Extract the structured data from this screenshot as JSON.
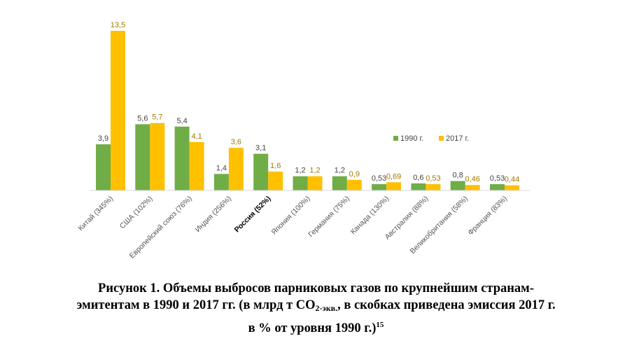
{
  "chart_data": {
    "type": "bar",
    "categories": [
      "Китай (345%)",
      "США (102%)",
      "Европейский союз (76%)",
      "Индия (256%)",
      "Россия (52%)",
      "Япония (100%)",
      "Германия (75%)",
      "Канада (130%)",
      "Австралия (88%)",
      "Великобритания (58%)",
      "Франция (83%)"
    ],
    "highlight_category": "Россия (52%)",
    "series": [
      {
        "name": "1990 г.",
        "color": "#70ad47",
        "values": [
          3.9,
          5.6,
          5.4,
          1.4,
          3.1,
          1.2,
          1.2,
          0.53,
          0.6,
          0.8,
          0.53
        ],
        "labels": [
          "3,9",
          "5,6",
          "5,4",
          "1,4",
          "3,1",
          "1,2",
          "1,2",
          "0,53",
          "0,6",
          "0,8",
          "0,53"
        ]
      },
      {
        "name": "2017 г.",
        "color": "#ffc000",
        "values": [
          13.5,
          5.7,
          4.1,
          3.6,
          1.6,
          1.2,
          0.9,
          0.69,
          0.53,
          0.46,
          0.44
        ],
        "labels": [
          "13,5",
          "5,7",
          "4,1",
          "3,6",
          "1,6",
          "1,2",
          "0,9",
          "0,69",
          "0,53",
          "0,46",
          "0,44"
        ]
      }
    ],
    "ylim": [
      0,
      13.5
    ],
    "grid": false,
    "legend_position": "right",
    "xlabel": "",
    "ylabel": ""
  },
  "caption": {
    "line1": "Рисунок 1. Объемы выбросов парниковых газов по крупнейшим странам-",
    "line2_a": "эмитентам в 1990 и 2017 гг. (в млрд т CO",
    "line2_sub": "2-экв.",
    "line2_b": ", в скобках приведена эмиссия 2017 г.",
    "line3": "в % от уровня 1990 г.)",
    "line3_sup": "15"
  }
}
